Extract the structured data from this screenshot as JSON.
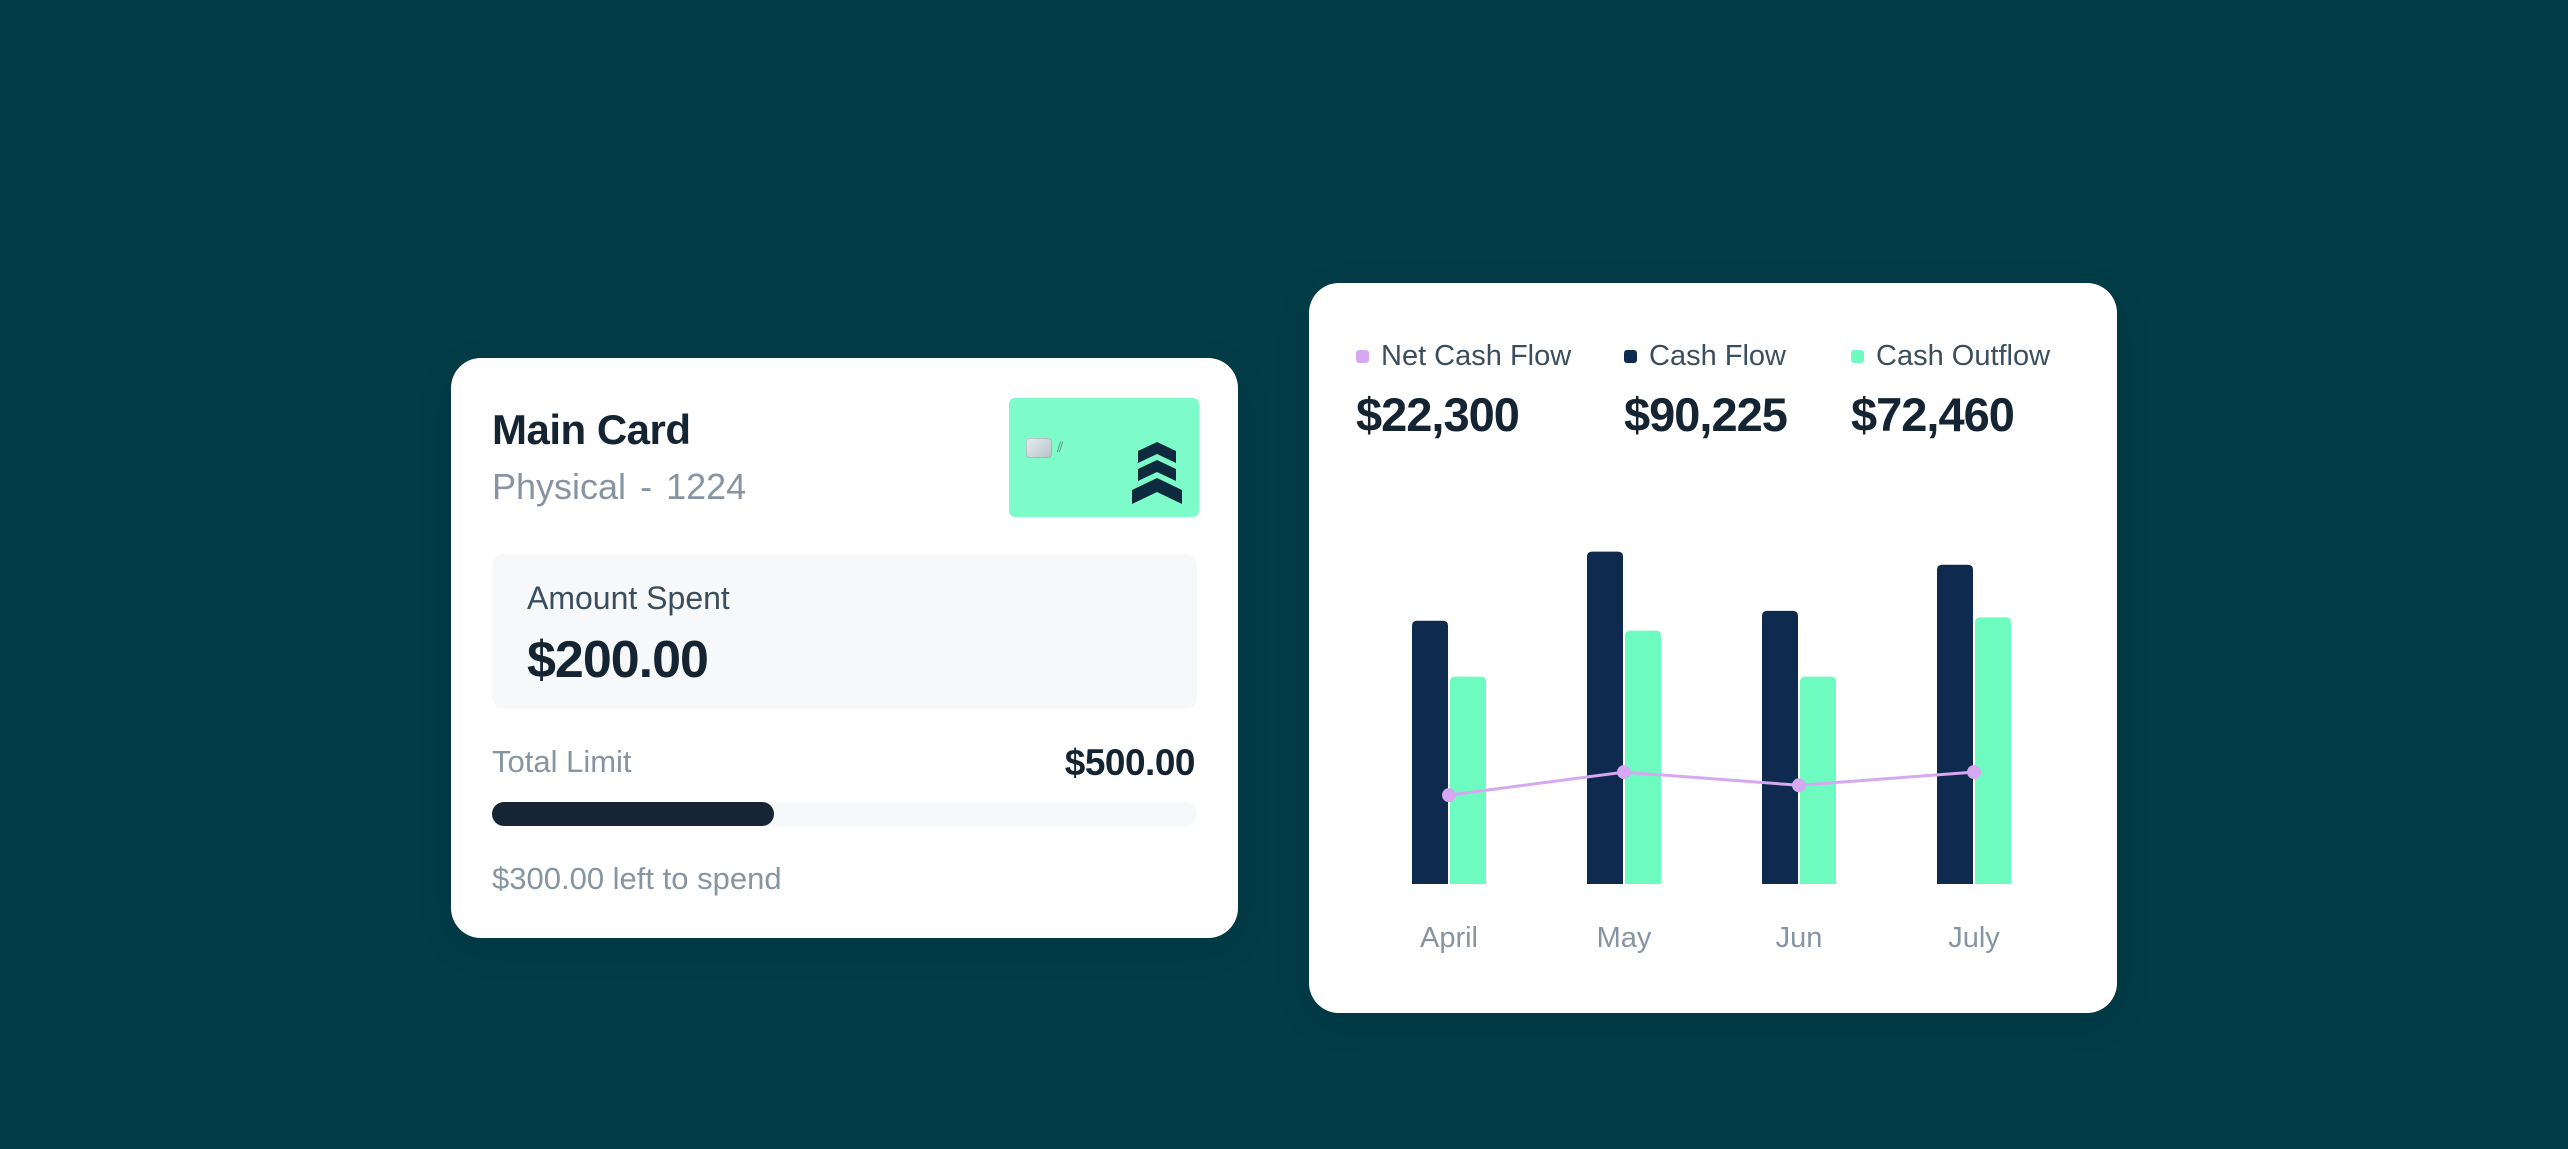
{
  "card": {
    "title": "Main Card",
    "type": "Physical",
    "separator": "-",
    "last4": "1224",
    "amount_spent_label": "Amount Spent",
    "amount_spent": "$200.00",
    "total_limit_label": "Total Limit",
    "total_limit": "$500.00",
    "spent_fraction": 0.4,
    "left_to_spend": "$300.00 left to spend",
    "thumb_color": "#7DFBC8",
    "brand_icon": "stacked-chevrons-icon"
  },
  "cashflow": {
    "stats": [
      {
        "label": "Net Cash Flow",
        "value": "$22,300",
        "color": "#D6A8F2"
      },
      {
        "label": "Cash Flow",
        "value": "$90,225",
        "color": "#0E2A4F"
      },
      {
        "label": "Cash Outflow",
        "value": "$72,460",
        "color": "#6EFBC0"
      }
    ]
  },
  "chart_data": {
    "type": "bar",
    "categories": [
      "April",
      "May",
      "Jun",
      "July"
    ],
    "series": [
      {
        "name": "Cash Flow",
        "kind": "bar",
        "color": "#0E2A4F",
        "values": [
          80,
          101,
          83,
          97
        ]
      },
      {
        "name": "Cash Outflow",
        "kind": "bar",
        "color": "#6EFBC0",
        "values": [
          63,
          77,
          63,
          81
        ]
      },
      {
        "name": "Net Cash Flow",
        "kind": "line",
        "color": "#D6A8F2",
        "values": [
          27,
          34,
          30,
          34
        ]
      }
    ],
    "ylim": [
      0,
      110
    ],
    "grid": false,
    "legend": "top"
  }
}
